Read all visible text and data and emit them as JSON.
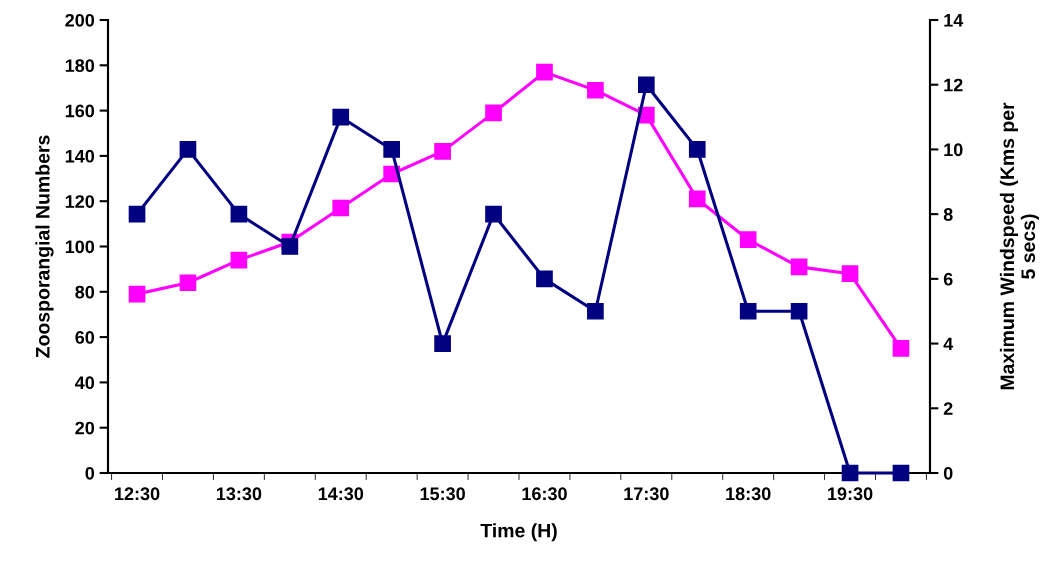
{
  "chart_data": {
    "type": "line",
    "xlabel": "Time (H)",
    "ylabel": "Zoosporangial Numbers",
    "y2label": "Maximum Windspeed (Kms per\n5 secs)",
    "categories": [
      "12:30",
      null,
      "13:30",
      null,
      "14:30",
      null,
      "15:30",
      null,
      "16:30",
      null,
      "17:30",
      null,
      "18:30",
      null,
      "19:30",
      null
    ],
    "series": [
      {
        "color": "#ff00ff",
        "values": [
          79,
          84,
          94,
          102,
          117,
          132,
          142,
          159,
          177,
          169,
          158,
          121,
          103,
          91,
          88,
          55
        ]
      },
      {
        "color": "#000080",
        "axis": "y2",
        "values": [
          8,
          10,
          8,
          7,
          11,
          10,
          4,
          8,
          6,
          5,
          12,
          10,
          5,
          5,
          0,
          0
        ]
      }
    ],
    "ylim": [
      0,
      200
    ],
    "yticks": [
      0,
      20,
      40,
      60,
      80,
      100,
      120,
      140,
      160,
      180,
      200
    ],
    "y2lim": [
      0,
      14
    ],
    "y2ticks": [
      0,
      2,
      4,
      6,
      8,
      10,
      12,
      14
    ],
    "marker": "square",
    "line_style": "solid",
    "grid": false,
    "legend": false
  }
}
